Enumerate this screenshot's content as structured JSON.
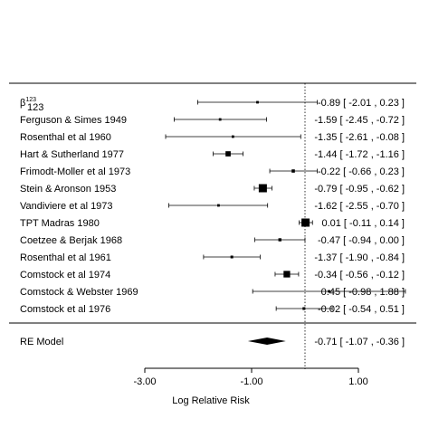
{
  "chart_data": {
    "type": "forest",
    "xlabel": "Log Relative Risk",
    "xticks": [
      -3,
      -1,
      1
    ],
    "xtick_labels": [
      "-3.00",
      "-1.00",
      "1.00"
    ],
    "xlim": [
      -3.0,
      1.0
    ],
    "reference_line": 0,
    "studies": [
      {
        "label": "β",
        "label_sup": "123",
        "label_sub": "123",
        "est": -0.89,
        "lo": -2.01,
        "hi": 0.23,
        "ci_text": "-0.89 [ -2.01 ,  0.23 ]"
      },
      {
        "label": "Ferguson & Simes 1949",
        "est": -1.59,
        "lo": -2.45,
        "hi": -0.72,
        "ci_text": "-1.59 [ -2.45 , -0.72 ]"
      },
      {
        "label": "Rosenthal et al 1960",
        "est": -1.35,
        "lo": -2.61,
        "hi": -0.08,
        "ci_text": "-1.35 [ -2.61 , -0.08 ]"
      },
      {
        "label": "Hart & Sutherland 1977",
        "est": -1.44,
        "lo": -1.72,
        "hi": -1.16,
        "ci_text": "-1.44 [ -1.72 , -1.16 ]"
      },
      {
        "label": "Frimodt-Moller et al 1973",
        "est": -0.22,
        "lo": -0.66,
        "hi": 0.23,
        "ci_text": "-0.22 [ -0.66 ,  0.23 ]"
      },
      {
        "label": "Stein & Aronson 1953",
        "est": -0.79,
        "lo": -0.95,
        "hi": -0.62,
        "ci_text": "-0.79 [ -0.95 , -0.62 ]"
      },
      {
        "label": "Vandiviere et al 1973",
        "est": -1.62,
        "lo": -2.55,
        "hi": -0.7,
        "ci_text": "-1.62 [ -2.55 , -0.70 ]"
      },
      {
        "label": "TPT Madras 1980",
        "est": 0.01,
        "lo": -0.11,
        "hi": 0.14,
        "ci_text": "0.01 [ -0.11 ,  0.14 ]"
      },
      {
        "label": "Coetzee & Berjak 1968",
        "est": -0.47,
        "lo": -0.94,
        "hi": 0.0,
        "ci_text": "-0.47 [ -0.94 ,  0.00 ]"
      },
      {
        "label": "Rosenthal et al 1961",
        "est": -1.37,
        "lo": -1.9,
        "hi": -0.84,
        "ci_text": "-1.37 [ -1.90 , -0.84 ]"
      },
      {
        "label": "Comstock et al 1974",
        "est": -0.34,
        "lo": -0.56,
        "hi": -0.12,
        "ci_text": "-0.34 [ -0.56 , -0.12 ]"
      },
      {
        "label": "Comstock & Webster 1969",
        "est": 0.45,
        "lo": -0.98,
        "hi": 1.88,
        "ci_text": "0.45 [ -0.98 ,  1.88 ]"
      },
      {
        "label": "Comstock et al 1976",
        "est": -0.02,
        "lo": -0.54,
        "hi": 0.51,
        "ci_text": "-0.02 [ -0.54 ,  0.51 ]"
      }
    ],
    "summary": {
      "label": "RE Model",
      "est": -0.71,
      "lo": -1.07,
      "hi": -0.36,
      "ci_text": "-0.71 [ -1.07 , -0.36 ]"
    }
  }
}
